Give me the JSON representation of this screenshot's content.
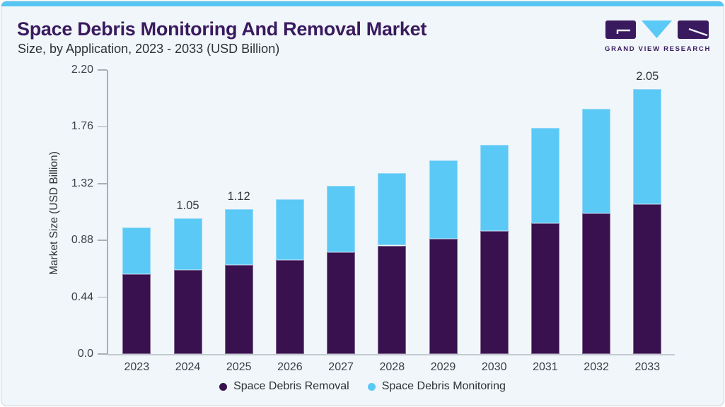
{
  "header": {
    "title": "Space Debris Monitoring And Removal Market",
    "subtitle": "Size, by Application, 2023 - 2033 (USD Billion)"
  },
  "logo": {
    "text": "GRAND VIEW RESEARCH"
  },
  "colors": {
    "accent_blue": "#5BC9F5",
    "deep_purple": "#38114E",
    "title_purple": "#3A1A5E",
    "top_bar_blue": "#56C5F1",
    "card_background": "#F0F6FA",
    "axis_gray": "#A7AFB8",
    "baseline_gray": "#C3CAD1",
    "label_gray": "#3B4046"
  },
  "chart_data": {
    "type": "bar",
    "stacked": true,
    "title": "Space Debris Monitoring And Removal Market Size, by Application, 2023 - 2033 (USD Billion)",
    "xlabel": "",
    "ylabel": "Market Size (USD Billion)",
    "ylim": [
      0,
      2.2
    ],
    "yticks": [
      0.0,
      0.44,
      0.88,
      1.32,
      1.76,
      2.2
    ],
    "ytick_labels": [
      "0.0",
      "0.44",
      "0.88",
      "1.32",
      "1.76",
      "2.20"
    ],
    "categories": [
      "2023",
      "2024",
      "2025",
      "2026",
      "2027",
      "2028",
      "2029",
      "2030",
      "2031",
      "2032",
      "2033"
    ],
    "series": [
      {
        "name": "Space Debris Removal",
        "color": "#38114E",
        "values": [
          0.62,
          0.65,
          0.69,
          0.73,
          0.79,
          0.84,
          0.89,
          0.95,
          1.01,
          1.09,
          1.16
        ]
      },
      {
        "name": "Space Debris Monitoring",
        "color": "#5BC9F5",
        "values": [
          0.36,
          0.4,
          0.43,
          0.47,
          0.51,
          0.56,
          0.61,
          0.67,
          0.74,
          0.81,
          0.89
        ]
      }
    ],
    "totals": [
      0.98,
      1.05,
      1.12,
      1.2,
      1.3,
      1.4,
      1.5,
      1.62,
      1.75,
      1.9,
      2.05
    ],
    "value_labels": [
      {
        "category": "2024",
        "text": "1.05"
      },
      {
        "category": "2025",
        "text": "1.12"
      },
      {
        "category": "2033",
        "text": "2.05"
      }
    ],
    "grid": false,
    "legend_position": "bottom"
  }
}
